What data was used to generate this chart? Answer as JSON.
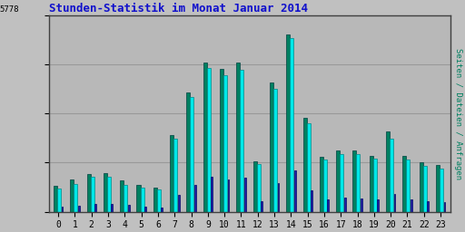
{
  "title": "Stunden-Statistik im Monat Januar 2014",
  "ylabel_right": "Seiten / Dateien / Anfragen",
  "ytick_label": "5778",
  "xlabel_values": [
    0,
    1,
    2,
    3,
    4,
    5,
    6,
    7,
    8,
    9,
    10,
    11,
    12,
    13,
    14,
    15,
    16,
    17,
    18,
    19,
    20,
    21,
    22,
    23
  ],
  "seiten": [
    280,
    340,
    400,
    410,
    330,
    290,
    260,
    820,
    1280,
    1600,
    1530,
    1600,
    540,
    1380,
    1900,
    1000,
    590,
    650,
    650,
    600,
    860,
    600,
    530,
    500
  ],
  "dateien": [
    250,
    300,
    370,
    370,
    290,
    260,
    240,
    780,
    1230,
    1540,
    1460,
    1520,
    510,
    1310,
    1860,
    950,
    560,
    620,
    620,
    570,
    780,
    560,
    490,
    465
  ],
  "anfragen": [
    50,
    65,
    85,
    85,
    68,
    52,
    44,
    180,
    290,
    370,
    345,
    360,
    115,
    305,
    445,
    225,
    130,
    148,
    144,
    135,
    185,
    130,
    112,
    105
  ],
  "color_seiten": "#008060",
  "color_dateien": "#00E8E8",
  "color_anfragen": "#2020AA",
  "bg_color": "#C0C0C0",
  "plot_bg": "#B8B8B8",
  "title_color": "#1010CC",
  "ylabel_right_color": "#008060",
  "grid_color": "#999999",
  "ymax": 2100,
  "figwidth": 5.12,
  "figheight": 2.56,
  "dpi": 100
}
